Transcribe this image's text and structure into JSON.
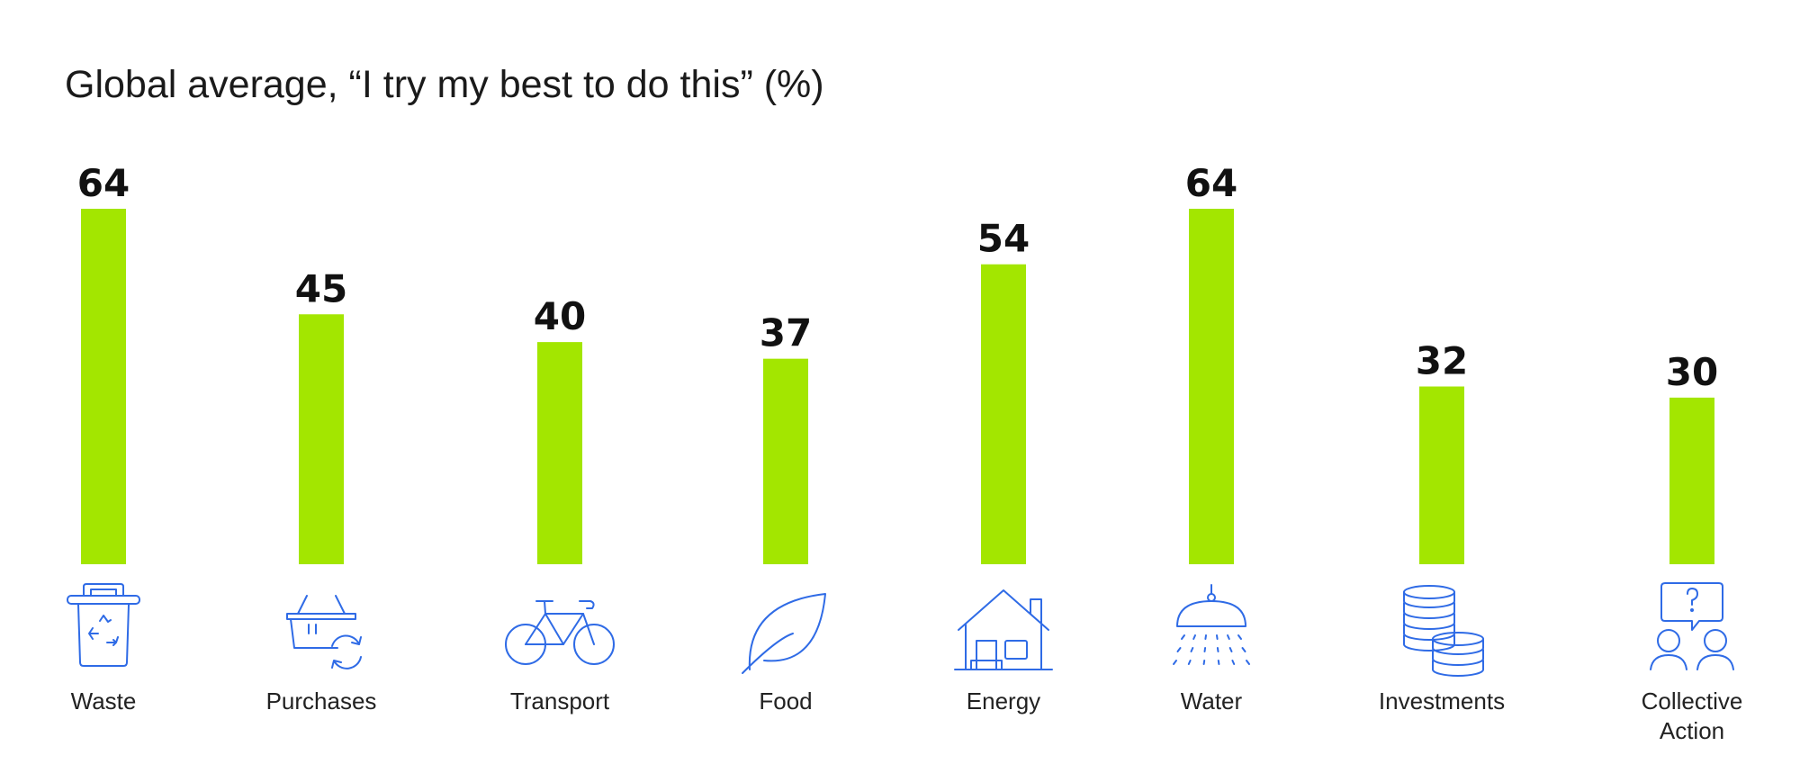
{
  "chart_data": {
    "type": "bar",
    "title": "Global average, “I try my best to do this” (%)",
    "categories": [
      "Waste",
      "Purchases",
      "Transport",
      "Food",
      "Energy",
      "Water",
      "Investments",
      "Collective Action"
    ],
    "category_lines": [
      [
        "Waste"
      ],
      [
        "Purchases"
      ],
      [
        "Transport"
      ],
      [
        "Food"
      ],
      [
        "Energy"
      ],
      [
        "Water"
      ],
      [
        "Investments"
      ],
      [
        "Collective",
        "Action"
      ]
    ],
    "values": [
      64,
      45,
      40,
      37,
      54,
      64,
      32,
      30
    ],
    "icons": [
      "recycling-bin-icon",
      "shopping-basket-icon",
      "bicycle-icon",
      "leaf-icon",
      "house-icon",
      "shower-icon",
      "coin-stack-icon",
      "people-discussion-icon"
    ],
    "ylim": [
      0,
      64
    ],
    "grid": false,
    "xlabel": "",
    "ylabel": "",
    "colors": {
      "bar": "#a3e600",
      "icon": "#2f6be6",
      "value_text": "#111111",
      "label_text": "#222222"
    }
  }
}
